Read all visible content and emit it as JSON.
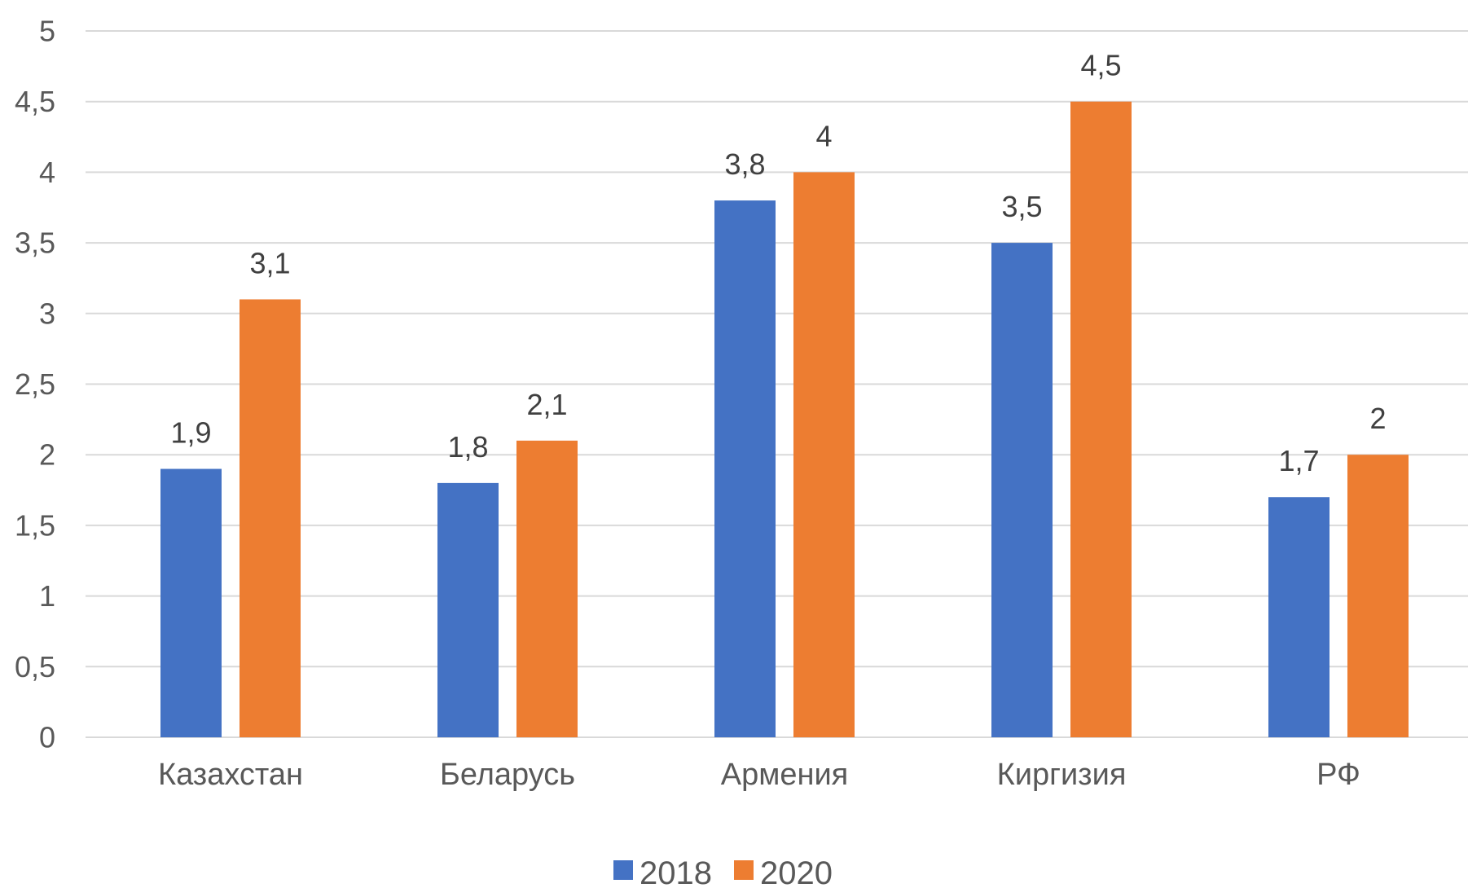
{
  "chart_data": {
    "type": "bar",
    "categories": [
      "Казахстан",
      "Беларусь",
      "Армения",
      "Киргизия",
      "РФ"
    ],
    "series": [
      {
        "name": "2018",
        "values": [
          1.9,
          1.8,
          3.8,
          3.5,
          1.7
        ],
        "color": "#4472C4",
        "labels": [
          "1,9",
          "1,8",
          "3,8",
          "3,5",
          "1,7"
        ]
      },
      {
        "name": "2020",
        "values": [
          3.1,
          2.1,
          4,
          4.5,
          2
        ],
        "color": "#ED7D31",
        "labels": [
          "3,1",
          "2,1",
          "4",
          "4,5",
          "2"
        ]
      }
    ],
    "ylim": [
      0,
      5
    ],
    "yticks": [
      0,
      0.5,
      1,
      1.5,
      2,
      2.5,
      3,
      3.5,
      4,
      4.5,
      5
    ],
    "ytick_labels": [
      "0",
      "0,5",
      "1",
      "1,5",
      "2",
      "2,5",
      "3",
      "3,5",
      "4",
      "4,5",
      "5"
    ],
    "grid": true,
    "legend": "bottom",
    "gridline_color": "#D9D9D9"
  }
}
